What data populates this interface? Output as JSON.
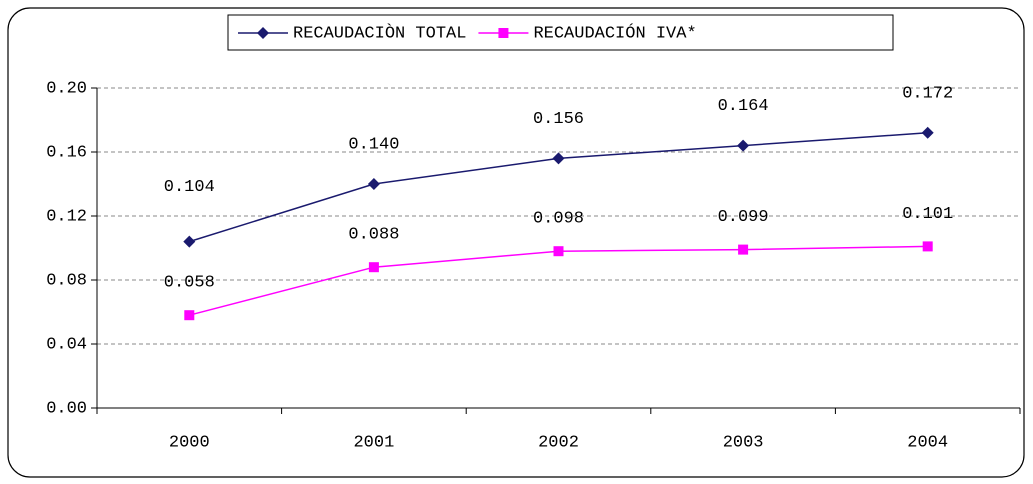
{
  "chart_data": {
    "type": "line",
    "categories": [
      "2000",
      "2001",
      "2002",
      "2003",
      "2004"
    ],
    "series": [
      {
        "name": "RECAUDACIÒN TOTAL",
        "color": "#1a1a6e",
        "marker": "diamond",
        "values": [
          0.104,
          0.14,
          0.156,
          0.164,
          0.172
        ],
        "value_labels": [
          "0.104",
          "0.140",
          "0.156",
          "0.164",
          "0.172"
        ]
      },
      {
        "name": "RECAUDACIÓN IVA*",
        "color": "#ff00ff",
        "marker": "square",
        "values": [
          0.058,
          0.088,
          0.098,
          0.099,
          0.101
        ]
      }
    ],
    "ylim": [
      0,
      0.2
    ],
    "yticks": [
      {
        "value": 0,
        "label": "0.00"
      },
      0.04,
      0.08,
      0.12,
      0.16,
      {
        "value": 0.2,
        "label": "0.20"
      }
    ],
    "grid": true,
    "legend": "top"
  }
}
